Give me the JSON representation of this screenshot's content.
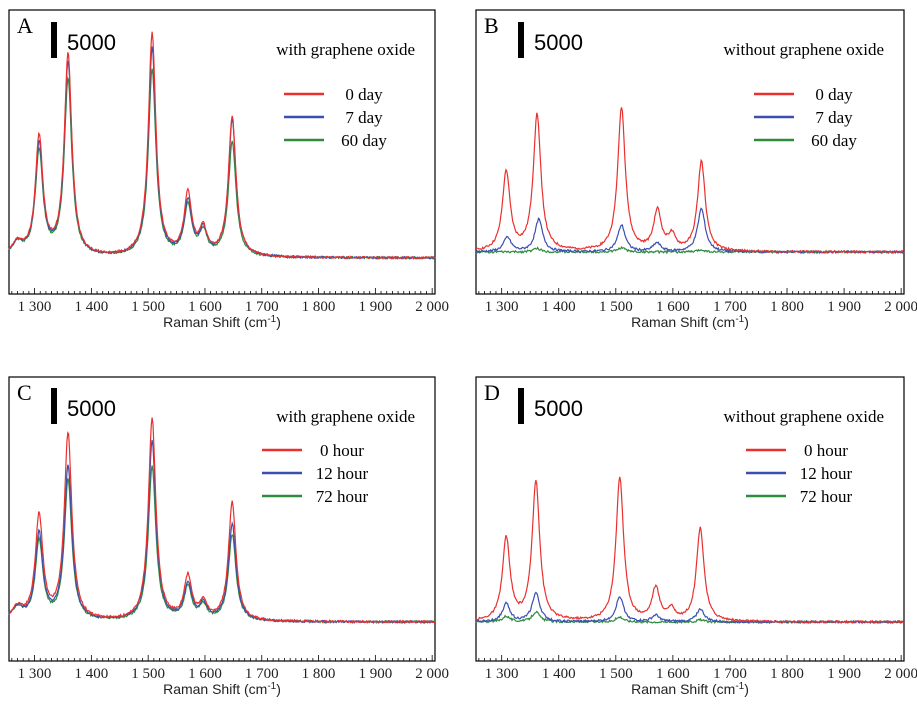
{
  "figure": {
    "xlabel": "Raman Shift (cm",
    "xlabel_sup": "-1",
    "xlabel_close": ")",
    "x_ticks": [
      1300,
      1400,
      1500,
      1600,
      1700,
      1800,
      1900,
      2000
    ],
    "x_tick_labels": [
      "1 300",
      "1 400",
      "1 500",
      "1 600",
      "1 700",
      "1 800",
      "1 900",
      "2 000"
    ],
    "scale_bar_label": "5000"
  },
  "colors": {
    "red": "#e8312f",
    "blue": "#3a4fb0",
    "green": "#2e8b3e"
  },
  "chart_data": [
    {
      "type": "line",
      "panel": "A",
      "annotation": "with graphene oxide",
      "xlim": [
        1255,
        2005
      ],
      "scale_bar": 5000,
      "series": [
        {
          "name": "0 day",
          "color": "red",
          "peaks": [
            [
              1308,
              16500
            ],
            [
              1359,
              28000
            ],
            [
              1507,
              31000
            ],
            [
              1570,
              8500
            ],
            [
              1597,
              3500
            ],
            [
              1648,
              19500
            ]
          ]
        },
        {
          "name": "7 day",
          "color": "blue",
          "peaks": [
            [
              1308,
              15500
            ],
            [
              1359,
              27000
            ],
            [
              1507,
              29000
            ],
            [
              1570,
              7500
            ],
            [
              1597,
              3400
            ],
            [
              1648,
              19000
            ]
          ]
        },
        {
          "name": "60 day",
          "color": "green",
          "peaks": [
            [
              1308,
              14500
            ],
            [
              1359,
              24500
            ],
            [
              1507,
              26000
            ],
            [
              1570,
              7000
            ],
            [
              1597,
              3200
            ],
            [
              1648,
              16000
            ]
          ]
        }
      ]
    },
    {
      "type": "line",
      "panel": "B",
      "annotation": "without graphene oxide",
      "xlim": [
        1255,
        2005
      ],
      "scale_bar": 5000,
      "series": [
        {
          "name": "0 day",
          "color": "red",
          "peaks": [
            [
              1308,
              11000
            ],
            [
              1362,
              19000
            ],
            [
              1510,
              20000
            ],
            [
              1573,
              5500
            ],
            [
              1598,
              2000
            ],
            [
              1650,
              12500
            ]
          ]
        },
        {
          "name": "7 day",
          "color": "blue",
          "peaks": [
            [
              1310,
              2000
            ],
            [
              1365,
              4500
            ],
            [
              1510,
              3700
            ],
            [
              1572,
              1200
            ],
            [
              1650,
              6000
            ]
          ]
        },
        {
          "name": "60 day",
          "color": "green",
          "peaks": [
            [
              1362,
              500
            ],
            [
              1510,
              600
            ],
            [
              1650,
              300
            ]
          ]
        }
      ]
    },
    {
      "type": "line",
      "panel": "C",
      "annotation": "with graphene oxide",
      "xlim": [
        1255,
        2005
      ],
      "scale_bar": 5000,
      "series": [
        {
          "name": "0 hour",
          "color": "red",
          "peaks": [
            [
              1308,
              14500
            ],
            [
              1359,
              26000
            ],
            [
              1507,
              28000
            ],
            [
              1570,
              6000
            ],
            [
              1597,
              2300
            ],
            [
              1648,
              16500
            ]
          ]
        },
        {
          "name": "12 hour",
          "color": "blue",
          "peaks": [
            [
              1308,
              12000
            ],
            [
              1359,
              21500
            ],
            [
              1507,
              25000
            ],
            [
              1570,
              5000
            ],
            [
              1597,
              2200
            ],
            [
              1648,
              13500
            ]
          ]
        },
        {
          "name": "72 hour",
          "color": "green",
          "peaks": [
            [
              1308,
              11000
            ],
            [
              1359,
              19500
            ],
            [
              1507,
              21500
            ],
            [
              1570,
              4600
            ],
            [
              1597,
              2000
            ],
            [
              1648,
              12000
            ]
          ]
        }
      ]
    },
    {
      "type": "line",
      "panel": "D",
      "annotation": "without graphene oxide",
      "xlim": [
        1255,
        2005
      ],
      "scale_bar": 5000,
      "series": [
        {
          "name": "0 hour",
          "color": "red",
          "peaks": [
            [
              1308,
              11500
            ],
            [
              1360,
              19500
            ],
            [
              1507,
              20000
            ],
            [
              1570,
              4500
            ],
            [
              1597,
              1500
            ],
            [
              1648,
              13000
            ]
          ]
        },
        {
          "name": "12 hour",
          "color": "blue",
          "peaks": [
            [
              1308,
              2500
            ],
            [
              1360,
              4000
            ],
            [
              1507,
              3500
            ],
            [
              1570,
              900
            ],
            [
              1648,
              1800
            ]
          ]
        },
        {
          "name": "72 hour",
          "color": "green",
          "peaks": [
            [
              1308,
              800
            ],
            [
              1360,
              1400
            ],
            [
              1507,
              700
            ],
            [
              1648,
              300
            ]
          ]
        }
      ]
    }
  ]
}
